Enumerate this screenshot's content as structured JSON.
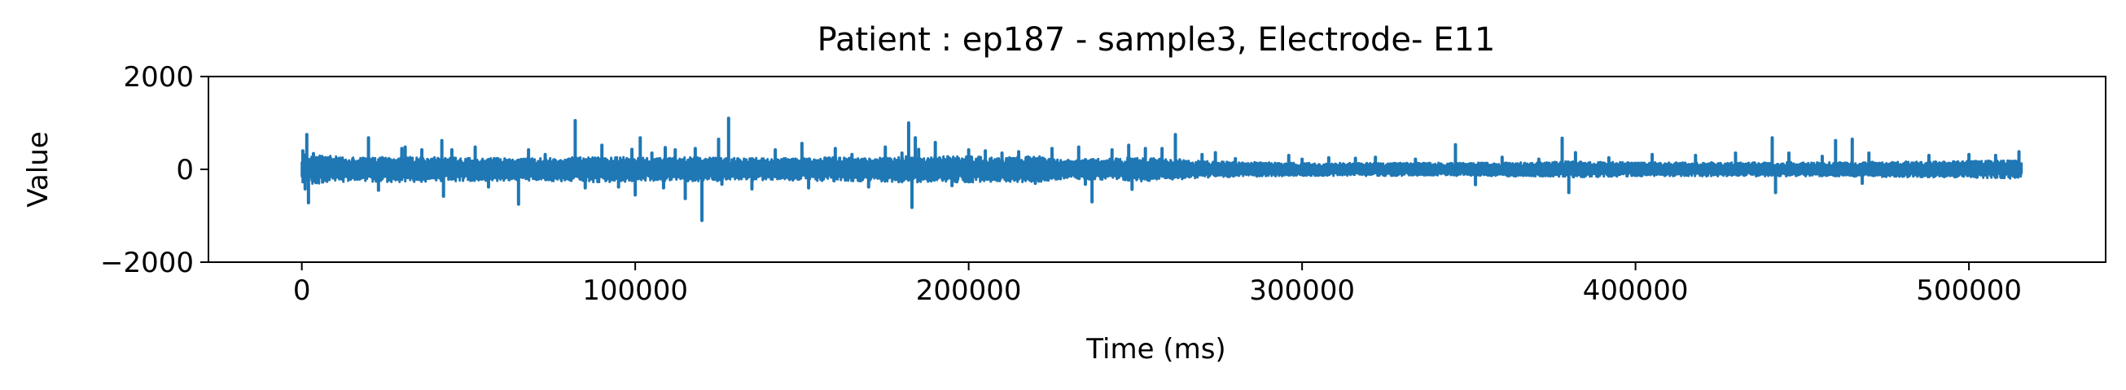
{
  "chart_data": {
    "type": "line",
    "title": "Patient : ep187 - sample3, Electrode- E11",
    "xlabel": "Time (ms)",
    "ylabel": "Value",
    "xlim": [
      -28000,
      541000
    ],
    "ylim": [
      -2000,
      2000
    ],
    "xticks": [
      0,
      100000,
      200000,
      300000,
      400000,
      500000
    ],
    "xtick_labels": [
      "0",
      "100000",
      "200000",
      "300000",
      "400000",
      "500000"
    ],
    "yticks": [
      2000,
      0,
      -2000
    ],
    "ytick_labels": [
      "2000",
      "0",
      "−2000"
    ],
    "grid": false,
    "legend": "none",
    "series_color": "#1f77b4",
    "series": [
      {
        "x_start": 0,
        "x_end": 516000,
        "baseline_band": [
          [
            0,
            330
          ],
          [
            10000,
            280
          ],
          [
            20000,
            260
          ],
          [
            30000,
            280
          ],
          [
            40000,
            260
          ],
          [
            50000,
            250
          ],
          [
            60000,
            250
          ],
          [
            70000,
            240
          ],
          [
            80000,
            260
          ],
          [
            90000,
            280
          ],
          [
            100000,
            260
          ],
          [
            110000,
            250
          ],
          [
            120000,
            260
          ],
          [
            130000,
            240
          ],
          [
            140000,
            240
          ],
          [
            150000,
            240
          ],
          [
            160000,
            260
          ],
          [
            170000,
            260
          ],
          [
            180000,
            280
          ],
          [
            190000,
            280
          ],
          [
            200000,
            280
          ],
          [
            210000,
            260
          ],
          [
            220000,
            290
          ],
          [
            230000,
            210
          ],
          [
            240000,
            230
          ],
          [
            250000,
            260
          ],
          [
            260000,
            230
          ],
          [
            270000,
            180
          ],
          [
            280000,
            160
          ],
          [
            290000,
            150
          ],
          [
            300000,
            140
          ],
          [
            310000,
            140
          ],
          [
            320000,
            140
          ],
          [
            330000,
            140
          ],
          [
            340000,
            140
          ],
          [
            350000,
            140
          ],
          [
            360000,
            150
          ],
          [
            370000,
            150
          ],
          [
            380000,
            170
          ],
          [
            390000,
            160
          ],
          [
            400000,
            150
          ],
          [
            410000,
            150
          ],
          [
            420000,
            150
          ],
          [
            430000,
            150
          ],
          [
            440000,
            150
          ],
          [
            450000,
            150
          ],
          [
            460000,
            150
          ],
          [
            470000,
            160
          ],
          [
            480000,
            170
          ],
          [
            490000,
            170
          ],
          [
            500000,
            180
          ],
          [
            516000,
            200
          ]
        ],
        "spikes": [
          [
            300,
            400
          ],
          [
            1000,
            -420
          ],
          [
            1500,
            750
          ],
          [
            2000,
            -720
          ],
          [
            3500,
            340
          ],
          [
            20000,
            680
          ],
          [
            23000,
            -450
          ],
          [
            30000,
            450
          ],
          [
            31000,
            480
          ],
          [
            36000,
            420
          ],
          [
            42000,
            620
          ],
          [
            42500,
            -580
          ],
          [
            45000,
            420
          ],
          [
            52000,
            480
          ],
          [
            56000,
            -380
          ],
          [
            65000,
            -750
          ],
          [
            68000,
            420
          ],
          [
            73000,
            320
          ],
          [
            82000,
            1050
          ],
          [
            85000,
            -400
          ],
          [
            90000,
            520
          ],
          [
            95000,
            -380
          ],
          [
            99000,
            430
          ],
          [
            100000,
            -550
          ],
          [
            101500,
            680
          ],
          [
            105000,
            350
          ],
          [
            108500,
            -400
          ],
          [
            109000,
            470
          ],
          [
            112000,
            420
          ],
          [
            115000,
            -630
          ],
          [
            118000,
            450
          ],
          [
            120000,
            -1100
          ],
          [
            125000,
            650
          ],
          [
            126000,
            -320
          ],
          [
            128000,
            1100
          ],
          [
            135000,
            -420
          ],
          [
            142000,
            420
          ],
          [
            150000,
            560
          ],
          [
            152000,
            -400
          ],
          [
            160000,
            450
          ],
          [
            165000,
            320
          ],
          [
            170000,
            -380
          ],
          [
            175000,
            480
          ],
          [
            180000,
            350
          ],
          [
            182000,
            1000
          ],
          [
            183000,
            -820
          ],
          [
            184000,
            680
          ],
          [
            185000,
            430
          ],
          [
            190000,
            580
          ],
          [
            195000,
            -350
          ],
          [
            200000,
            420
          ],
          [
            205000,
            400
          ],
          [
            210000,
            350
          ],
          [
            215000,
            380
          ],
          [
            220000,
            -300
          ],
          [
            225000,
            450
          ],
          [
            233000,
            480
          ],
          [
            235000,
            -320
          ],
          [
            237000,
            -700
          ],
          [
            243000,
            420
          ],
          [
            248000,
            520
          ],
          [
            249000,
            -430
          ],
          [
            253000,
            450
          ],
          [
            258000,
            450
          ],
          [
            262000,
            750
          ],
          [
            270000,
            320
          ],
          [
            274000,
            360
          ],
          [
            280000,
            230
          ],
          [
            296000,
            300
          ],
          [
            300000,
            220
          ],
          [
            308000,
            250
          ],
          [
            316000,
            240
          ],
          [
            322000,
            260
          ],
          [
            334000,
            220
          ],
          [
            346000,
            530
          ],
          [
            352000,
            -330
          ],
          [
            360000,
            260
          ],
          [
            371000,
            220
          ],
          [
            378000,
            670
          ],
          [
            380000,
            -500
          ],
          [
            382000,
            360
          ],
          [
            392000,
            250
          ],
          [
            405000,
            320
          ],
          [
            418000,
            300
          ],
          [
            430000,
            350
          ],
          [
            441000,
            680
          ],
          [
            442000,
            -500
          ],
          [
            446000,
            350
          ],
          [
            456000,
            280
          ],
          [
            460000,
            620
          ],
          [
            465000,
            650
          ],
          [
            468000,
            -300
          ],
          [
            470000,
            350
          ],
          [
            488000,
            300
          ],
          [
            500000,
            320
          ],
          [
            508000,
            300
          ],
          [
            515000,
            380
          ]
        ]
      }
    ]
  }
}
